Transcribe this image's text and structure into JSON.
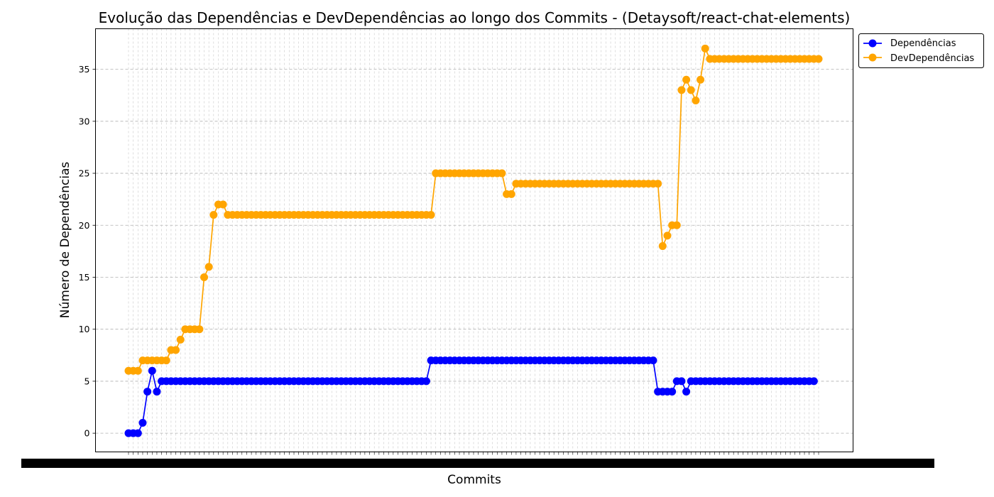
{
  "chart_data": {
    "type": "line",
    "title": "Evolução das Dependências e DevDependências ao longo dos Commits - (Detaysoft/react-chat-elements)",
    "xlabel": "Commits",
    "ylabel": "Número de Dependências",
    "ylim": [
      -1.8,
      38.9
    ],
    "yticks": [
      0,
      5,
      10,
      15,
      20,
      25,
      30,
      35
    ],
    "grid": true,
    "legend_position": "top-right-outside",
    "x_tick_labels_unreadable": true,
    "series": [
      {
        "name": "Dependências",
        "color": "#0000ff",
        "runs": [
          [
            1,
            0
          ],
          [
            1,
            0
          ],
          [
            1,
            0
          ],
          [
            1,
            1
          ],
          [
            1,
            4
          ],
          [
            1,
            6
          ],
          [
            1,
            4
          ],
          [
            57,
            5
          ],
          [
            48,
            7
          ],
          [
            4,
            4
          ],
          [
            2,
            5
          ],
          [
            1,
            4
          ],
          [
            27,
            5
          ]
        ]
      },
      {
        "name": "DevDependências",
        "color": "#ffa500",
        "runs": [
          [
            3,
            6
          ],
          [
            6,
            7
          ],
          [
            2,
            8
          ],
          [
            1,
            9
          ],
          [
            4,
            10
          ],
          [
            1,
            15
          ],
          [
            1,
            16
          ],
          [
            1,
            21
          ],
          [
            2,
            22
          ],
          [
            44,
            21
          ],
          [
            15,
            25
          ],
          [
            2,
            23
          ],
          [
            31,
            24
          ],
          [
            1,
            18
          ],
          [
            1,
            19
          ],
          [
            2,
            20
          ],
          [
            1,
            33
          ],
          [
            1,
            34
          ],
          [
            1,
            33
          ],
          [
            1,
            32
          ],
          [
            1,
            34
          ],
          [
            1,
            37
          ],
          [
            24,
            36
          ]
        ]
      }
    ]
  }
}
